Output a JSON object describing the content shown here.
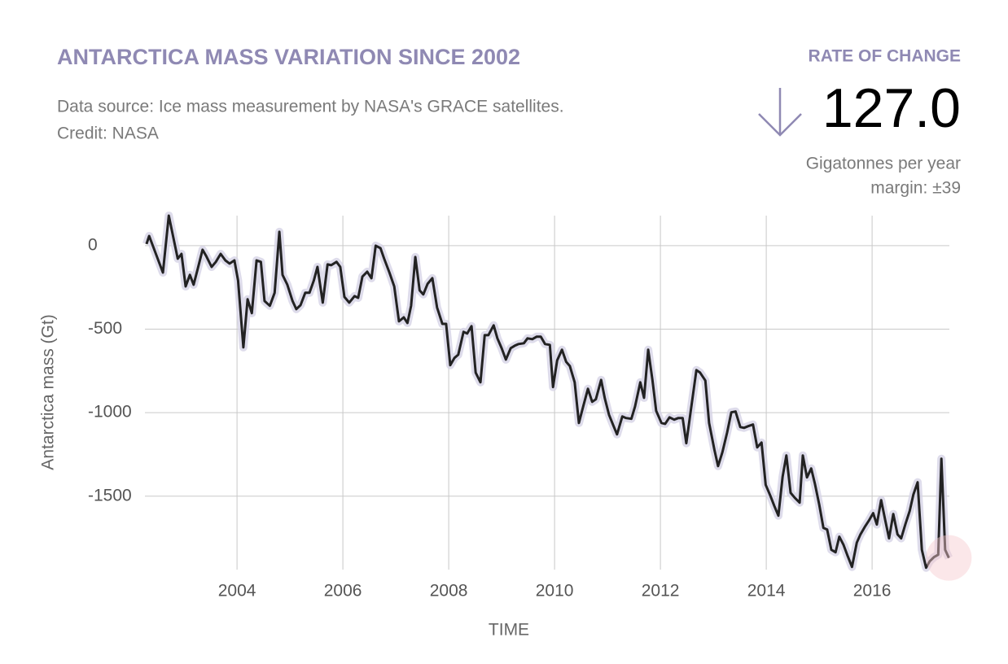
{
  "chart_data": {
    "type": "line",
    "title": "ANTARCTICA MASS VARIATION SINCE 2002",
    "subtitle": [
      "Data source: Ice mass measurement by NASA's GRACE satellites.",
      "Credit: NASA"
    ],
    "rate_label": "RATE OF CHANGE",
    "rate_value": "127.0",
    "rate_unit": "Gigatonnes per year",
    "rate_margin": "margin: ±39",
    "y_label": "Antarctica mass (Gt)",
    "x_label": "TIME",
    "xlim": [
      2002.26,
      2017.46
    ],
    "xticks": [
      2004,
      2006,
      2008,
      2010,
      2012,
      2014,
      2016
    ],
    "ylim": [
      -1940,
      180
    ],
    "yticks": [
      0,
      -500,
      -1000,
      -1500
    ],
    "grid": true,
    "series": [
      {
        "name": "Antarctica mass",
        "color": "#222222",
        "x": [
          2002.29,
          2002.34,
          2002.6,
          2002.71,
          2002.88,
          2002.95,
          2003.03,
          2003.11,
          2003.18,
          2003.26,
          2003.35,
          2003.42,
          2003.52,
          2003.6,
          2003.69,
          2003.78,
          2003.86,
          2003.95,
          2004.02,
          2004.12,
          2004.2,
          2004.28,
          2004.37,
          2004.45,
          2004.52,
          2004.62,
          2004.71,
          2004.8,
          2004.86,
          2004.95,
          2005.05,
          2005.12,
          2005.2,
          2005.29,
          2005.37,
          2005.45,
          2005.52,
          2005.62,
          2005.71,
          2005.78,
          2005.88,
          2005.95,
          2006.03,
          2006.12,
          2006.22,
          2006.29,
          2006.37,
          2006.46,
          2006.54,
          2006.62,
          2006.71,
          2006.78,
          2006.88,
          2006.97,
          2007.06,
          2007.15,
          2007.22,
          2007.29,
          2007.37,
          2007.45,
          2007.52,
          2007.6,
          2007.69,
          2007.78,
          2007.88,
          2007.95,
          2008.03,
          2008.11,
          2008.18,
          2008.28,
          2008.35,
          2008.43,
          2008.51,
          2008.6,
          2008.68,
          2008.75,
          2008.85,
          2008.92,
          2009.0,
          2009.08,
          2009.17,
          2009.25,
          2009.32,
          2009.42,
          2009.49,
          2009.58,
          2009.66,
          2009.74,
          2009.82,
          2009.91,
          2009.97,
          2010.05,
          2010.14,
          2010.22,
          2010.29,
          2010.38,
          2010.46,
          2010.54,
          2010.63,
          2010.71,
          2010.78,
          2010.88,
          2010.95,
          2011.03,
          2011.11,
          2011.18,
          2011.28,
          2011.35,
          2011.45,
          2011.52,
          2011.62,
          2011.69,
          2011.77,
          2011.85,
          2011.92,
          2012.02,
          2012.09,
          2012.17,
          2012.26,
          2012.34,
          2012.42,
          2012.49,
          2012.58,
          2012.68,
          2012.75,
          2012.85,
          2012.92,
          2013.02,
          2013.09,
          2013.17,
          2013.26,
          2013.34,
          2013.42,
          2013.51,
          2013.58,
          2013.66,
          2013.75,
          2013.83,
          2013.91,
          2013.99,
          2014.08,
          2014.15,
          2014.23,
          2014.31,
          2014.38,
          2014.46,
          2014.54,
          2014.63,
          2014.69,
          2014.77,
          2014.85,
          2014.92,
          2015.0,
          2015.08,
          2015.15,
          2015.23,
          2015.31,
          2015.38,
          2015.46,
          2015.54,
          2015.62,
          2015.71,
          2015.78,
          2015.86,
          2015.94,
          2016.02,
          2016.09,
          2016.17,
          2016.25,
          2016.32,
          2016.4,
          2016.48,
          2016.55,
          2016.63,
          2016.71,
          2016.78,
          2016.86,
          2016.94,
          2017.02,
          2017.09,
          2017.17,
          2017.25,
          2017.31,
          2017.38,
          2017.45
        ],
        "values": [
          10,
          58,
          -161,
          180,
          -78,
          -49,
          -244,
          -175,
          -234,
          -136,
          -24,
          -63,
          -127,
          -97,
          -49,
          -88,
          -107,
          -88,
          -209,
          -609,
          -321,
          -404,
          -88,
          -97,
          -331,
          -360,
          -282,
          83,
          -175,
          -234,
          -331,
          -380,
          -356,
          -282,
          -282,
          -209,
          -127,
          -341,
          -112,
          -117,
          -97,
          -127,
          -307,
          -341,
          -302,
          -312,
          -185,
          -156,
          -195,
          0,
          -15,
          -78,
          -161,
          -244,
          -453,
          -429,
          -463,
          -360,
          -68,
          -268,
          -292,
          -229,
          -195,
          -370,
          -468,
          -468,
          -716,
          -672,
          -653,
          -516,
          -526,
          -482,
          -760,
          -818,
          -536,
          -536,
          -477,
          -555,
          -614,
          -682,
          -614,
          -599,
          -589,
          -584,
          -555,
          -560,
          -545,
          -545,
          -589,
          -594,
          -847,
          -687,
          -623,
          -696,
          -721,
          -818,
          -1062,
          -964,
          -857,
          -935,
          -920,
          -804,
          -916,
          -1013,
          -1076,
          -1130,
          -1023,
          -1032,
          -1037,
          -964,
          -818,
          -911,
          -623,
          -804,
          -989,
          -1062,
          -1067,
          -1028,
          -1042,
          -1032,
          -1032,
          -1183,
          -974,
          -745,
          -760,
          -808,
          -1062,
          -1222,
          -1320,
          -1237,
          -1120,
          -998,
          -993,
          -1086,
          -1091,
          -1081,
          -1071,
          -1208,
          -1179,
          -1432,
          -1500,
          -1558,
          -1617,
          -1383,
          -1256,
          -1480,
          -1510,
          -1539,
          -1256,
          -1388,
          -1334,
          -1427,
          -1549,
          -1690,
          -1700,
          -1821,
          -1836,
          -1743,
          -1792,
          -1860,
          -1924,
          -1778,
          -1729,
          -1685,
          -1646,
          -1602,
          -1670,
          -1524,
          -1646,
          -1753,
          -1607,
          -1729,
          -1753,
          -1666,
          -1588,
          -1490,
          -1417,
          -1821,
          -1929,
          -1890,
          -1865,
          -1851,
          -1276,
          -1821,
          -1870
        ]
      }
    ]
  }
}
